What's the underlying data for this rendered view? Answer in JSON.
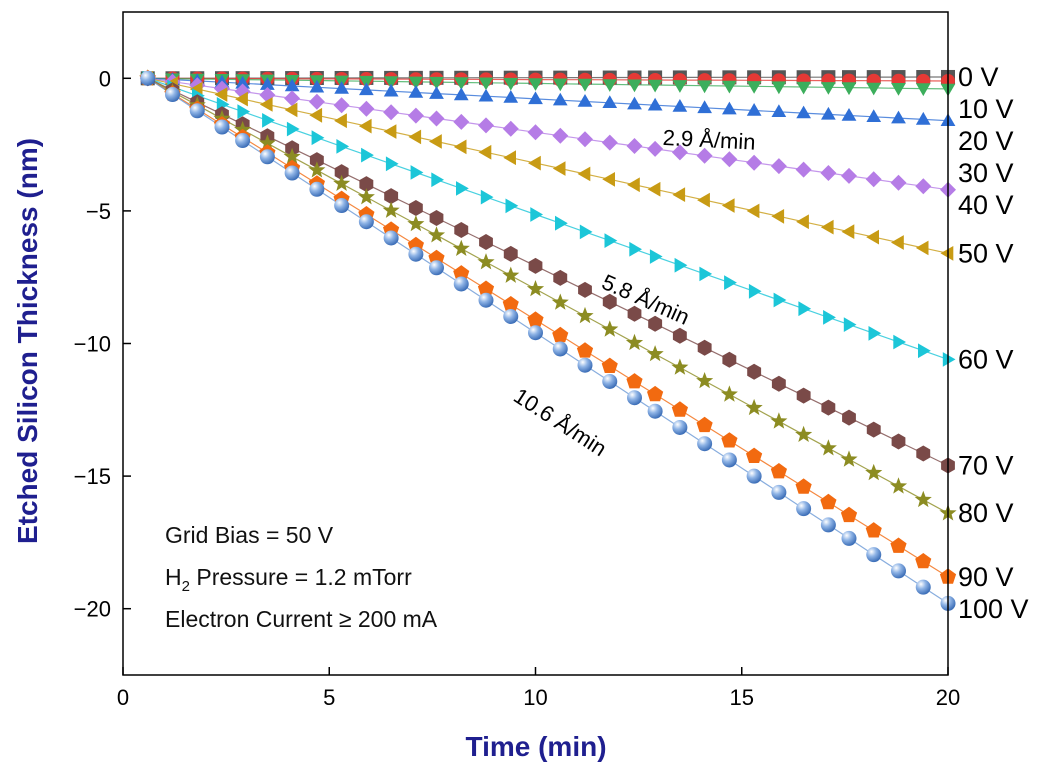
{
  "chart_data": {
    "type": "scatter",
    "xlabel": "Time (min)",
    "ylabel": "Etched Silicon Thickness (nm)",
    "xlim": [
      0,
      20
    ],
    "ylim": [
      -22.5,
      2.5
    ],
    "xticks": [
      0,
      5,
      10,
      15,
      20
    ],
    "yticks": [
      0,
      -5,
      -10,
      -15,
      -20
    ],
    "x": [
      0.6,
      1.2,
      1.8,
      2.4,
      2.9,
      3.5,
      4.1,
      4.7,
      5.3,
      5.9,
      6.5,
      7.1,
      7.6,
      8.2,
      8.8,
      9.4,
      10.0,
      10.6,
      11.2,
      11.8,
      12.4,
      12.9,
      13.5,
      14.1,
      14.7,
      15.3,
      15.9,
      16.5,
      17.1,
      17.6,
      18.2,
      18.8,
      19.4,
      20.0
    ],
    "series": [
      {
        "name": "0 V",
        "final": 0.05,
        "color": "#555555",
        "marker": "square"
      },
      {
        "name": "10 V",
        "final": -0.1,
        "color": "#e53935",
        "marker": "circle"
      },
      {
        "name": "20 V",
        "final": -0.4,
        "color": "#3cae5c",
        "marker": "triangle-down"
      },
      {
        "name": "30 V",
        "final": -1.6,
        "color": "#2f6fd6",
        "marker": "triangle-up"
      },
      {
        "name": "40 V",
        "final": -4.2,
        "color": "#b57ce6",
        "marker": "diamond"
      },
      {
        "name": "50 V",
        "final": -6.6,
        "color": "#c89b14",
        "marker": "triangle-left"
      },
      {
        "name": "60 V",
        "final": -10.6,
        "color": "#1cc6d8",
        "marker": "triangle-right"
      },
      {
        "name": "70 V",
        "final": -14.6,
        "color": "#7a4a48",
        "marker": "hexagon"
      },
      {
        "name": "80 V",
        "final": -16.4,
        "color": "#8c8c22",
        "marker": "star"
      },
      {
        "name": "90 V",
        "final": -18.8,
        "color": "#f26a10",
        "marker": "pentagon"
      },
      {
        "name": "100 V",
        "final": -19.8,
        "color": "#6a98d6",
        "marker": "sphere"
      }
    ],
    "annotations": [
      {
        "text": "2.9 Å/min",
        "x": 14.2,
        "y": -2.6,
        "angle": 3
      },
      {
        "text": "5.8 Å/min",
        "x": 12.6,
        "y": -8.6,
        "angle": 24
      },
      {
        "text": "10.6 Å/min",
        "x": 10.5,
        "y": -13.2,
        "angle": 33
      }
    ],
    "notes": {
      "line1": "Grid Bias = 50 V",
      "line2_prefix": "H",
      "line2_sub": "2",
      "line2_suffix": " Pressure = 1.2 mTorr",
      "line3": "Electron Current ≥ 200 mA"
    }
  }
}
